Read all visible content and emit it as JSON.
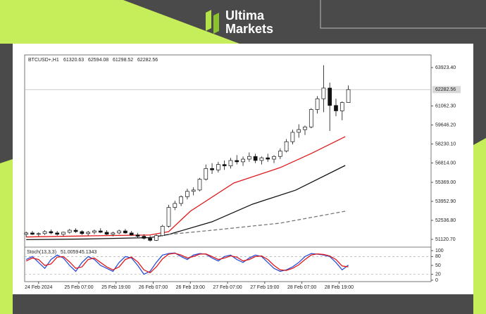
{
  "brand": {
    "name": "Ultima",
    "name2": "Markets"
  },
  "chart_data": [
    {
      "type": "candlestick",
      "title": "BTCUSD+,H1",
      "x": [
        0,
        2,
        4,
        6,
        8,
        10,
        12,
        14,
        16,
        18,
        20,
        22,
        24,
        26,
        28,
        30,
        32,
        34,
        36,
        38,
        40,
        42,
        44,
        46,
        48,
        50,
        52,
        54,
        56,
        58,
        60,
        62,
        64,
        66,
        68,
        70,
        72,
        74,
        76,
        78,
        80,
        82,
        84,
        86,
        88,
        90,
        92,
        94,
        96,
        98,
        100,
        102,
        104
      ],
      "open": [
        51500,
        51600,
        51500,
        51550,
        51700,
        51600,
        51500,
        51650,
        51800,
        51700,
        51550,
        51650,
        51750,
        51650,
        51500,
        51600,
        51750,
        51600,
        51450,
        51350,
        51200,
        51050,
        51400,
        52100,
        53500,
        53800,
        54300,
        54700,
        54800,
        55600,
        56400,
        56300,
        56700,
        56600,
        57000,
        56900,
        57100,
        57300,
        57000,
        57200,
        57100,
        57300,
        57700,
        58400,
        59100,
        59300,
        59500,
        60800,
        61600,
        62400,
        61100,
        60700,
        61320.63
      ],
      "high": [
        51700,
        51750,
        51650,
        51800,
        51850,
        51750,
        51700,
        51900,
        51950,
        51800,
        51750,
        51850,
        51950,
        51800,
        51700,
        51850,
        51900,
        51750,
        51600,
        51500,
        51400,
        51500,
        52200,
        53700,
        54000,
        54400,
        54900,
        55000,
        55700,
        56700,
        56800,
        56900,
        57000,
        57200,
        57400,
        57300,
        57600,
        57500,
        57300,
        57500,
        57400,
        57900,
        58600,
        59300,
        59700,
        59600,
        60900,
        61800,
        64100,
        62800,
        61600,
        61400,
        62594.08
      ],
      "low": [
        51300,
        51450,
        51350,
        51450,
        51500,
        51400,
        51350,
        51550,
        51600,
        51450,
        51400,
        51500,
        51600,
        51450,
        51350,
        51500,
        51550,
        51400,
        51250,
        51100,
        50950,
        51000,
        51350,
        52000,
        53300,
        53600,
        54100,
        54400,
        54700,
        55500,
        56000,
        56100,
        56300,
        56400,
        56700,
        56600,
        56900,
        56800,
        56700,
        56900,
        56800,
        57100,
        57600,
        58200,
        58700,
        58900,
        59400,
        60500,
        60600,
        59200,
        60300,
        60000,
        61298.52
      ],
      "close": [
        51600,
        51500,
        51550,
        51700,
        51600,
        51500,
        51650,
        51800,
        51700,
        51550,
        51650,
        51750,
        51650,
        51500,
        51600,
        51750,
        51600,
        51450,
        51350,
        51200,
        51050,
        51400,
        52100,
        53500,
        53800,
        54300,
        54700,
        54800,
        55600,
        56400,
        56300,
        56700,
        56600,
        57000,
        56900,
        57100,
        57300,
        57000,
        57200,
        57100,
        57300,
        57700,
        58400,
        59100,
        59300,
        59500,
        60800,
        61600,
        62400,
        61100,
        60700,
        61320.63,
        62282.56
      ],
      "series": [
        {
          "color": "#e0191b",
          "dashed": false,
          "x": [
            0,
            20,
            40,
            46,
            53,
            67,
            82,
            92,
            103
          ],
          "values": [
            51300,
            51380,
            51450,
            51700,
            53220,
            55320,
            56470,
            57520,
            58780
          ]
        },
        {
          "color": "#111111",
          "dashed": false,
          "x": [
            0,
            20,
            40,
            46,
            60,
            73,
            87,
            103
          ],
          "values": [
            51100,
            51150,
            51250,
            51490,
            52430,
            53740,
            54790,
            56630
          ]
        },
        {
          "color": "#777777",
          "dashed": true,
          "x": [
            46,
            60,
            82,
            103
          ],
          "values": [
            51490,
            51800,
            52330,
            53220
          ]
        }
      ],
      "xlim": [
        -0.5,
        130.7
      ],
      "ylim": [
        50596,
        64868
      ],
      "yticks": [
        {
          "value": 63923.4,
          "label": "63923.40"
        },
        {
          "value": 61062.3,
          "label": "61062.30"
        },
        {
          "value": 59646.2,
          "label": "59646.20"
        },
        {
          "value": 58230.1,
          "label": "58230.10"
        },
        {
          "value": 56814,
          "label": "56814.00"
        },
        {
          "value": 55369,
          "label": "55369.00"
        },
        {
          "value": 53952.9,
          "label": "53952.90"
        },
        {
          "value": 52536.8,
          "label": "52536.80"
        },
        {
          "value": 51120.7,
          "label": "51120.70"
        }
      ],
      "xticks": [
        {
          "value": 4,
          "label": "24 Feb 2024"
        },
        {
          "value": 17,
          "label": "25 Feb 07:00"
        },
        {
          "value": 29,
          "label": "25 Feb 19:00"
        },
        {
          "value": 41,
          "label": "26 Feb 07:00"
        },
        {
          "value": 53,
          "label": "26 Feb 19:00"
        },
        {
          "value": 65,
          "label": "27 Feb 07:00"
        },
        {
          "value": 77,
          "label": "27 Feb 19:00"
        },
        {
          "value": 89,
          "label": "28 Feb 07:00"
        },
        {
          "value": 101,
          "label": "28 Feb 19:00"
        }
      ]
    },
    {
      "type": "line",
      "title": "Stoch(13,3,3)",
      "x": [
        0,
        2,
        4,
        6,
        8,
        10,
        12,
        14,
        16,
        18,
        20,
        22,
        24,
        26,
        28,
        30,
        32,
        34,
        36,
        38,
        40,
        42,
        44,
        46,
        48,
        50,
        52,
        54,
        56,
        58,
        60,
        62,
        64,
        66,
        68,
        70,
        72,
        74,
        76,
        78,
        80,
        82,
        84,
        86,
        88,
        90,
        92,
        94,
        96,
        98,
        100,
        102,
        104
      ],
      "series": [
        {
          "color": "#2a4fd8",
          "values": [
            70,
            80,
            60,
            40,
            70,
            85,
            75,
            50,
            30,
            60,
            80,
            70,
            50,
            40,
            30,
            60,
            80,
            75,
            50,
            20,
            30,
            60,
            85,
            90,
            92,
            80,
            70,
            85,
            90,
            88,
            75,
            65,
            80,
            85,
            70,
            60,
            75,
            85,
            80,
            60,
            40,
            30,
            35,
            45,
            60,
            80,
            90,
            88,
            85,
            80,
            60,
            35,
            51.0059
          ]
        },
        {
          "color": "#e0191b",
          "values": [
            65,
            75,
            70,
            50,
            55,
            78,
            80,
            62,
            40,
            45,
            70,
            75,
            60,
            45,
            35,
            45,
            70,
            78,
            62,
            35,
            25,
            45,
            72,
            88,
            91,
            85,
            75,
            80,
            88,
            89,
            80,
            70,
            75,
            82,
            78,
            65,
            70,
            80,
            82,
            70,
            50,
            35,
            33,
            40,
            52,
            70,
            85,
            89,
            87,
            82,
            70,
            48,
            45.1343
          ]
        }
      ],
      "xlim": [
        -0.5,
        130.7
      ],
      "ylim": [
        -4.8,
        109.5
      ],
      "yticks": [
        100,
        80,
        50,
        20,
        0
      ],
      "levels": [
        80,
        20
      ]
    }
  ]
}
